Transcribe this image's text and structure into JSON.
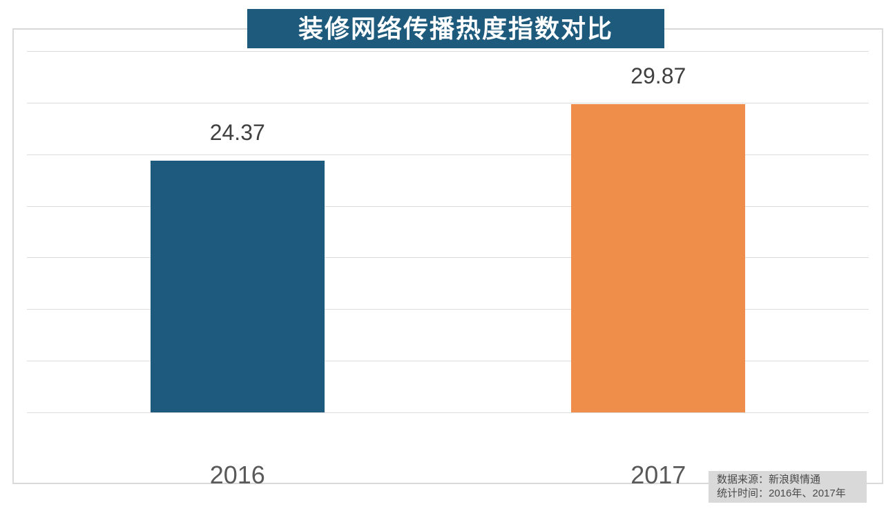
{
  "title": "装修网络传播热度指数对比",
  "source_note": {
    "line1": "数据来源：新浪舆情通",
    "line2": "统计时间：2016年、2017年"
  },
  "colors": {
    "title_bg": "#1E5A7C",
    "title_text": "#FFFFFF",
    "gridline": "#DCDCDC",
    "plot_border": "#D9D9D9",
    "data_label": "#404040",
    "axis_label": "#595959",
    "note_bg": "#D9D9D9",
    "note_text": "#4A4A4A"
  },
  "chart_data": {
    "type": "bar",
    "title": "装修网络传播热度指数对比",
    "categories": [
      "2016",
      "2017"
    ],
    "values": [
      24.37,
      29.87
    ],
    "data_labels": [
      "24.37",
      "29.87"
    ],
    "bar_colors": [
      "#1D5A7D",
      "#EF8E4A"
    ],
    "xlabel": "",
    "ylabel": "",
    "ylim": [
      0,
      35
    ],
    "gridline_step": 5,
    "grid": "horizontal",
    "legend": "none",
    "y_tick_labels_visible": false
  }
}
